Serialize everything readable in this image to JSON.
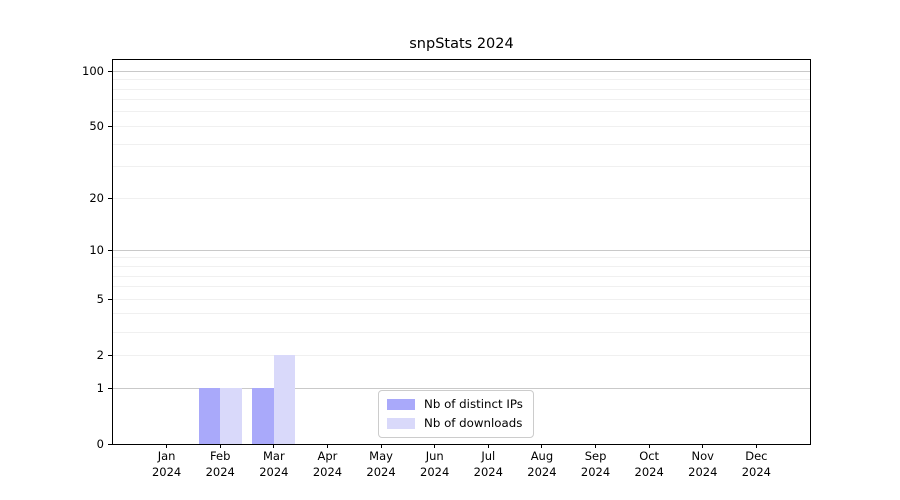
{
  "chart_data": {
    "type": "bar",
    "title": "snpStats 2024",
    "categories": [
      "Jan",
      "Feb",
      "Mar",
      "Apr",
      "May",
      "Jun",
      "Jul",
      "Aug",
      "Sep",
      "Oct",
      "Nov",
      "Dec"
    ],
    "category_year": "2024",
    "series": [
      {
        "name": "Nb of distinct IPs",
        "color": "#a9a9fa",
        "values": [
          0,
          1,
          1,
          0,
          0,
          0,
          0,
          0,
          0,
          0,
          0,
          0
        ]
      },
      {
        "name": "Nb of downloads",
        "color": "#d9d9fa",
        "values": [
          0,
          1,
          2,
          0,
          0,
          0,
          0,
          0,
          0,
          0,
          0,
          0
        ]
      }
    ],
    "xlabel": "",
    "ylabel": "",
    "yscale": "log1p",
    "ylim": [
      0,
      115
    ],
    "yticks": [
      0,
      1,
      2,
      5,
      10,
      20,
      50,
      100
    ],
    "minor_yticks": [
      2,
      3,
      4,
      5,
      6,
      7,
      8,
      9,
      20,
      30,
      40,
      50,
      60,
      70,
      80,
      90
    ],
    "decade_yticks": [
      1,
      10,
      100
    ],
    "grid": "on",
    "legend_position": "lower center"
  },
  "colors": {
    "background": "#ffffff",
    "spine": "#000000",
    "major_grid": "#c9c9c9",
    "minor_grid": "#f0f0f0",
    "tick_text": "#000000",
    "legend_border": "#cccccc"
  }
}
